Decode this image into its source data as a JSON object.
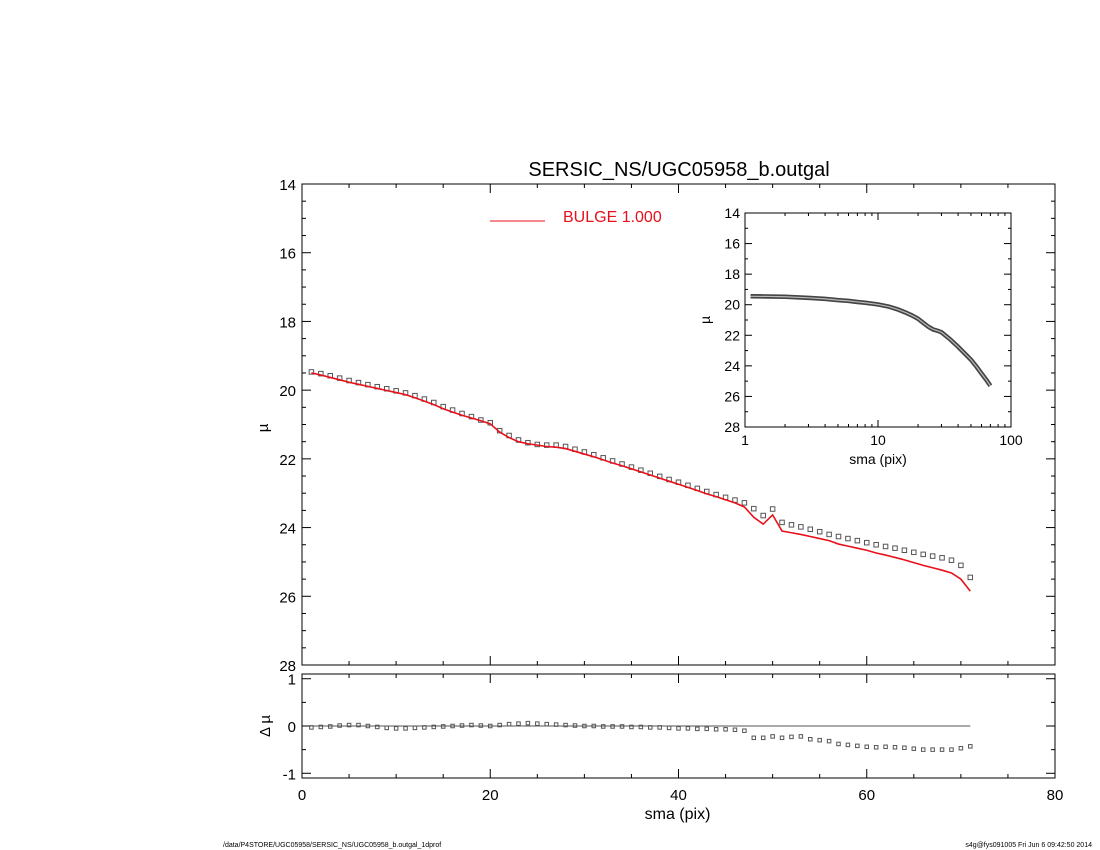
{
  "footer": {
    "left": "/data/P4STORE/UGC05958/SERSIC_NS/UGC05958_b.outgal_1dprof",
    "right": "s4g@fys091005  Fri Jun  6 09:42:50 2014"
  },
  "chart_data": [
    {
      "id": "main",
      "type": "scatter",
      "title": "SERSIC_NS/UGC05958_b.outgal",
      "xlabel": "",
      "ylabel": "µ",
      "xlim": [
        0,
        80
      ],
      "ylim": [
        28,
        14
      ],
      "y_inverted": true,
      "xticks": [
        0,
        20,
        40,
        60,
        80
      ],
      "yticks": [
        14,
        16,
        18,
        20,
        22,
        24,
        26,
        28
      ],
      "show_xtick_labels": false,
      "grid": false,
      "legend": {
        "position": "top-center",
        "entries": [
          {
            "label": "BULGE  1.000",
            "color": "#e8101a"
          }
        ]
      },
      "series": [
        {
          "name": "data",
          "style": "square-markers",
          "color": "#555555",
          "x": [
            1,
            2,
            3,
            4,
            5,
            6,
            7,
            8,
            9,
            10,
            11,
            12,
            13,
            14,
            15,
            16,
            17,
            18,
            19,
            20,
            21,
            22,
            23,
            24,
            25,
            26,
            27,
            28,
            29,
            30,
            31,
            32,
            33,
            34,
            35,
            36,
            37,
            38,
            39,
            40,
            41,
            42,
            43,
            44,
            45,
            46,
            47,
            48,
            49,
            50,
            51,
            52,
            53,
            54,
            55,
            56,
            57,
            58,
            59,
            60,
            61,
            62,
            63,
            64,
            65,
            66,
            67,
            68,
            69,
            70,
            71
          ],
          "y": [
            19.47,
            19.52,
            19.58,
            19.65,
            19.72,
            19.78,
            19.84,
            19.9,
            19.96,
            20.02,
            20.08,
            20.16,
            20.26,
            20.36,
            20.48,
            20.58,
            20.68,
            20.77,
            20.87,
            20.95,
            21.18,
            21.32,
            21.45,
            21.53,
            21.58,
            21.6,
            21.6,
            21.64,
            21.72,
            21.8,
            21.88,
            21.97,
            22.06,
            22.15,
            22.24,
            22.33,
            22.42,
            22.51,
            22.6,
            22.68,
            22.77,
            22.86,
            22.95,
            23.04,
            23.12,
            23.2,
            23.28,
            23.45,
            23.65,
            23.46,
            23.85,
            23.92,
            23.98,
            24.05,
            24.12,
            24.2,
            24.26,
            24.32,
            24.38,
            24.44,
            24.5,
            24.55,
            24.6,
            24.66,
            24.72,
            24.78,
            24.83,
            24.88,
            24.95,
            25.1,
            25.45
          ]
        },
        {
          "name": "BULGE  1.000",
          "style": "line",
          "color": "#e8101a",
          "x": [
            1,
            2,
            3,
            4,
            5,
            6,
            7,
            8,
            9,
            10,
            11,
            12,
            13,
            14,
            15,
            16,
            17,
            18,
            19,
            20,
            21,
            22,
            23,
            24,
            25,
            26,
            27,
            28,
            29,
            30,
            31,
            32,
            33,
            34,
            35,
            36,
            37,
            38,
            39,
            40,
            41,
            42,
            43,
            44,
            45,
            46,
            47,
            48,
            49,
            50,
            51,
            52,
            53,
            54,
            55,
            56,
            57,
            58,
            59,
            60,
            61,
            62,
            63,
            64,
            65,
            66,
            67,
            68,
            69,
            70,
            71
          ],
          "y": [
            19.5,
            19.56,
            19.63,
            19.7,
            19.77,
            19.83,
            19.89,
            19.95,
            20.01,
            20.07,
            20.13,
            20.22,
            20.32,
            20.42,
            20.54,
            20.64,
            20.73,
            20.81,
            20.89,
            20.98,
            21.22,
            21.38,
            21.5,
            21.56,
            21.6,
            21.64,
            21.66,
            21.7,
            21.78,
            21.86,
            21.94,
            22.03,
            22.12,
            22.2,
            22.29,
            22.38,
            22.47,
            22.56,
            22.65,
            22.74,
            22.83,
            22.92,
            23.02,
            23.1,
            23.19,
            23.28,
            23.4,
            23.7,
            23.9,
            23.63,
            24.1,
            24.15,
            24.2,
            24.26,
            24.32,
            24.38,
            24.48,
            24.54,
            24.6,
            24.66,
            24.74,
            24.8,
            24.87,
            24.94,
            25.02,
            25.1,
            25.17,
            25.24,
            25.32,
            25.5,
            25.85
          ]
        }
      ]
    },
    {
      "id": "inset",
      "type": "line",
      "xlabel": "sma (pix)",
      "ylabel": "µ",
      "x_scale": "log",
      "xlim": [
        1,
        100
      ],
      "ylim": [
        28,
        14
      ],
      "y_inverted": true,
      "xticks": [
        1,
        10,
        100
      ],
      "yticks": [
        14,
        16,
        18,
        20,
        22,
        24,
        26,
        28
      ],
      "grid": false,
      "series": [
        {
          "name": "data",
          "style": "dense-markers",
          "color": "#555555",
          "x": [
            1.1,
            1.5,
            2,
            3,
            4,
            5,
            6,
            7,
            8,
            10,
            12,
            14,
            16,
            18,
            20,
            22,
            24,
            26,
            28,
            30,
            35,
            40,
            45,
            50,
            55,
            60,
            65,
            70
          ],
          "y": [
            19.45,
            19.46,
            19.48,
            19.55,
            19.62,
            19.7,
            19.75,
            19.82,
            19.87,
            19.98,
            20.12,
            20.3,
            20.5,
            20.7,
            20.92,
            21.2,
            21.45,
            21.62,
            21.7,
            21.8,
            22.28,
            22.75,
            23.2,
            23.6,
            24.05,
            24.5,
            24.9,
            25.3
          ]
        }
      ]
    },
    {
      "id": "residual",
      "type": "scatter",
      "xlabel": "sma (pix)",
      "ylabel": "Δ µ",
      "xlim": [
        0,
        80
      ],
      "ylim": [
        -1.1,
        1.1
      ],
      "xticks": [
        0,
        20,
        40,
        60,
        80
      ],
      "yticks": [
        -1,
        0,
        1
      ],
      "grid": false,
      "reference_line": {
        "y": 0,
        "x": [
          1,
          71
        ]
      },
      "series": [
        {
          "name": "residual",
          "style": "square-markers",
          "color": "#555555",
          "x": [
            1,
            2,
            3,
            4,
            5,
            6,
            7,
            8,
            9,
            10,
            11,
            12,
            13,
            14,
            15,
            16,
            17,
            18,
            19,
            20,
            21,
            22,
            23,
            24,
            25,
            26,
            27,
            28,
            29,
            30,
            31,
            32,
            33,
            34,
            35,
            36,
            37,
            38,
            39,
            40,
            41,
            42,
            43,
            44,
            45,
            46,
            47,
            48,
            49,
            50,
            51,
            52,
            53,
            54,
            55,
            56,
            57,
            58,
            59,
            60,
            61,
            62,
            63,
            64,
            65,
            66,
            67,
            68,
            69,
            70,
            71
          ],
          "y": [
            -0.03,
            -0.02,
            -0.01,
            0.01,
            0.02,
            0.02,
            0.0,
            -0.02,
            -0.04,
            -0.05,
            -0.05,
            -0.04,
            -0.03,
            -0.02,
            -0.01,
            0.0,
            0.01,
            0.02,
            0.01,
            0.0,
            0.02,
            0.04,
            0.05,
            0.06,
            0.05,
            0.04,
            0.03,
            0.02,
            0.01,
            0.0,
            0.0,
            -0.01,
            -0.01,
            -0.01,
            -0.02,
            -0.02,
            -0.03,
            -0.03,
            -0.04,
            -0.05,
            -0.05,
            -0.06,
            -0.06,
            -0.07,
            -0.07,
            -0.08,
            -0.1,
            -0.25,
            -0.25,
            -0.22,
            -0.25,
            -0.23,
            -0.22,
            -0.28,
            -0.3,
            -0.32,
            -0.38,
            -0.4,
            -0.42,
            -0.44,
            -0.45,
            -0.44,
            -0.45,
            -0.46,
            -0.48,
            -0.5,
            -0.5,
            -0.5,
            -0.5,
            -0.47,
            -0.43
          ]
        }
      ]
    }
  ]
}
